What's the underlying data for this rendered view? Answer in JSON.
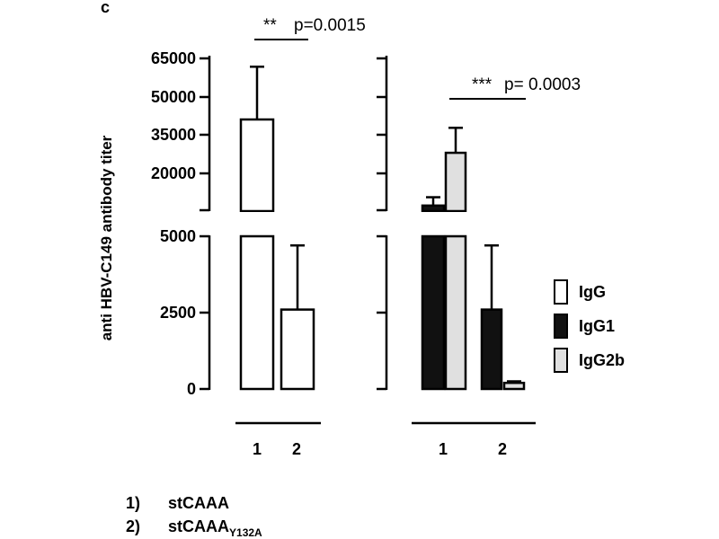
{
  "panel_label": "c",
  "y_axis_label": "anti HBV-C149 antibody titer",
  "sig_left": {
    "stars": "**",
    "p": "p=0.0015"
  },
  "sig_right": {
    "stars": "***",
    "p": "p= 0.0003"
  },
  "footnote": {
    "items": [
      {
        "num": "1)",
        "text": "stCAAA",
        "sub": ""
      },
      {
        "num": "2)",
        "text": "stCAAA",
        "sub": "Y132A"
      }
    ]
  },
  "legend": [
    {
      "name": "IgG",
      "color": "#ffffff"
    },
    {
      "name": "IgG1",
      "color": "#111111"
    },
    {
      "name": "IgG2b",
      "color": "#e0e0e0"
    }
  ],
  "chart_data": {
    "type": "bar",
    "title": "",
    "ylabel": "anti HBV-C149 antibody titer",
    "broken_axis": {
      "lower_range": [
        0,
        5000
      ],
      "upper_range": [
        10000,
        65000
      ],
      "lower_ticks": [
        "0",
        "2500",
        "5000"
      ],
      "upper_ticks": [
        "20000",
        "35000",
        "50000",
        "65000"
      ]
    },
    "categories": [
      "1",
      "2"
    ],
    "panels": [
      {
        "series": [
          {
            "name": "IgG",
            "values": [
              43000,
              2600
            ],
            "errors": [
              62000,
              4700
            ]
          }
        ]
      },
      {
        "series": [
          {
            "name": "IgG1",
            "values": [
              12000,
              2600
            ],
            "errors": [
              15000,
              4700
            ]
          },
          {
            "name": "IgG2b",
            "values": [
              31000,
              200
            ],
            "errors": [
              40000,
              250
            ]
          }
        ]
      }
    ]
  }
}
